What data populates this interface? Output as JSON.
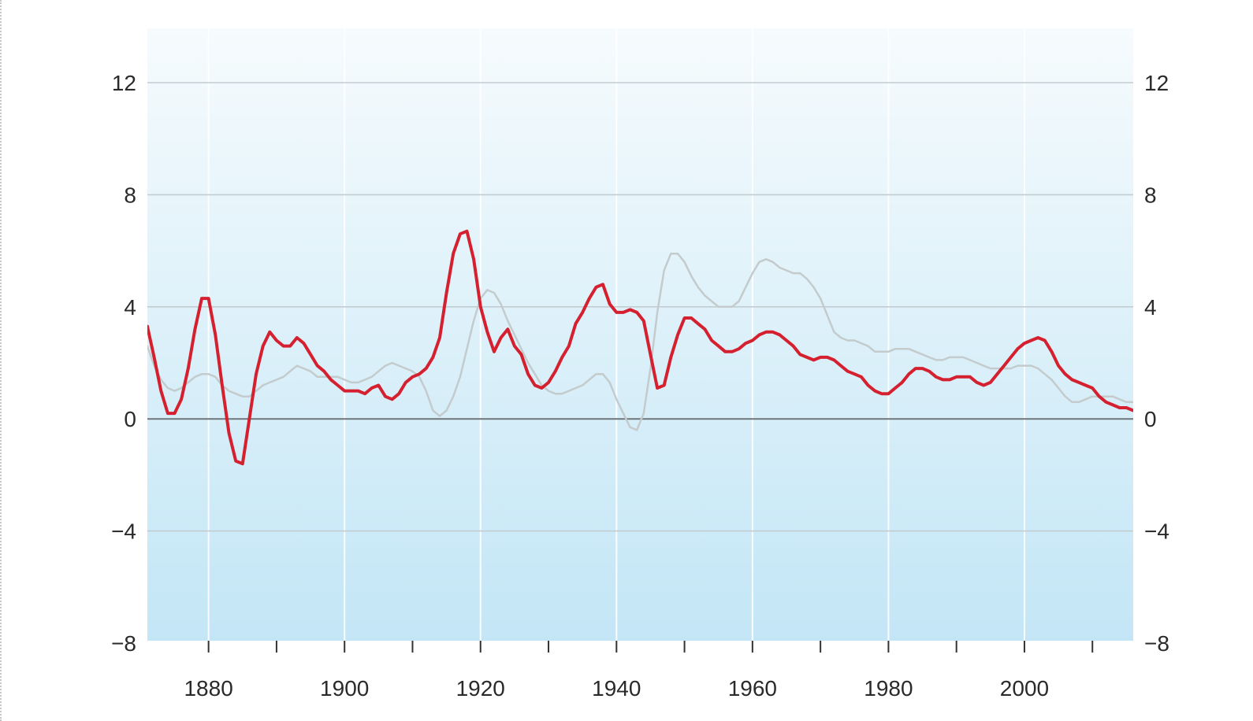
{
  "chart_data": {
    "type": "line",
    "title": "",
    "xlabel": "",
    "ylabel": "",
    "xlim": [
      1871,
      2016
    ],
    "ylim": [
      -8,
      14
    ],
    "grid": true,
    "legend": "none",
    "y_ticks": [
      12,
      8,
      4,
      0,
      -4,
      -8
    ],
    "y_tick_labels": [
      "12",
      "8",
      "4",
      "0",
      "−4",
      "−8"
    ],
    "x_ticks": [
      1880,
      1890,
      1900,
      1910,
      1920,
      1930,
      1940,
      1950,
      1960,
      1970,
      1980,
      1990,
      2000,
      2010
    ],
    "x_tick_labels": [
      "1880",
      "1900",
      "1920",
      "1940",
      "1960",
      "1980",
      "2000"
    ],
    "x_tick_label_years": [
      1880,
      1900,
      1920,
      1940,
      1960,
      1980,
      2000
    ],
    "colors": {
      "highlight": "#d5202f",
      "secondary": "#c4cbcd",
      "grid": "#c2cdd2",
      "zero_line": "#6e767a",
      "bg_top": "#f6fbfd",
      "bg_bottom": "#c3e6f6"
    },
    "series": [
      {
        "color": "#d5202f",
        "x": [
          1871,
          1872,
          1873,
          1874,
          1875,
          1876,
          1877,
          1878,
          1879,
          1880,
          1881,
          1882,
          1883,
          1884,
          1885,
          1886,
          1887,
          1888,
          1889,
          1890,
          1891,
          1892,
          1893,
          1894,
          1895,
          1896,
          1897,
          1898,
          1899,
          1900,
          1901,
          1902,
          1903,
          1904,
          1905,
          1906,
          1907,
          1908,
          1909,
          1910,
          1911,
          1912,
          1913,
          1914,
          1915,
          1916,
          1917,
          1918,
          1919,
          1920,
          1921,
          1922,
          1923,
          1924,
          1925,
          1926,
          1927,
          1928,
          1929,
          1930,
          1931,
          1932,
          1933,
          1934,
          1935,
          1936,
          1937,
          1938,
          1939,
          1940,
          1941,
          1942,
          1943,
          1944,
          1945,
          1946,
          1947,
          1948,
          1949,
          1950,
          1951,
          1952,
          1953,
          1954,
          1955,
          1956,
          1957,
          1958,
          1959,
          1960,
          1961,
          1962,
          1963,
          1964,
          1965,
          1966,
          1967,
          1968,
          1969,
          1970,
          1971,
          1972,
          1973,
          1974,
          1975,
          1976,
          1977,
          1978,
          1979,
          1980,
          1981,
          1982,
          1983,
          1984,
          1985,
          1986,
          1987,
          1988,
          1989,
          1990,
          1991,
          1992,
          1993,
          1994,
          1995,
          1996,
          1997,
          1998,
          1999,
          2000,
          2001,
          2002,
          2003,
          2004,
          2005,
          2006,
          2007,
          2008,
          2009,
          2010,
          2011,
          2012,
          2013,
          2014,
          2015,
          2016
        ],
        "y": [
          3.3,
          2.2,
          1.0,
          0.2,
          0.2,
          0.7,
          1.8,
          3.2,
          4.3,
          4.3,
          3.0,
          1.2,
          -0.5,
          -1.5,
          -1.6,
          0.0,
          1.6,
          2.6,
          3.1,
          2.8,
          2.6,
          2.6,
          2.9,
          2.7,
          2.3,
          1.9,
          1.7,
          1.4,
          1.2,
          1.0,
          1.0,
          1.0,
          0.9,
          1.1,
          1.2,
          0.8,
          0.7,
          0.9,
          1.3,
          1.5,
          1.6,
          1.8,
          2.2,
          2.9,
          4.5,
          5.9,
          6.6,
          6.7,
          5.7,
          4.0,
          3.1,
          2.4,
          2.9,
          3.2,
          2.6,
          2.3,
          1.6,
          1.2,
          1.1,
          1.3,
          1.7,
          2.2,
          2.6,
          3.4,
          3.8,
          4.3,
          4.7,
          4.8,
          4.1,
          3.8,
          3.8,
          3.9,
          3.8,
          3.5,
          2.3,
          1.1,
          1.2,
          2.2,
          3.0,
          3.6,
          3.6,
          3.4,
          3.2,
          2.8,
          2.6,
          2.4,
          2.4,
          2.5,
          2.7,
          2.8,
          3.0,
          3.1,
          3.1,
          3.0,
          2.8,
          2.6,
          2.3,
          2.2,
          2.1,
          2.2,
          2.2,
          2.1,
          1.9,
          1.7,
          1.6,
          1.5,
          1.2,
          1.0,
          0.9,
          0.9,
          1.1,
          1.3,
          1.6,
          1.8,
          1.8,
          1.7,
          1.5,
          1.4,
          1.4,
          1.5,
          1.5,
          1.5,
          1.3,
          1.2,
          1.3,
          1.6,
          1.9,
          2.2,
          2.5,
          2.7,
          2.8,
          2.9,
          2.8,
          2.4,
          1.9,
          1.6,
          1.4,
          1.3,
          1.2,
          1.1,
          0.8,
          0.6,
          0.5,
          0.4,
          0.4,
          0.3
        ]
      },
      {
        "color": "#c4cbcd",
        "x": [
          1871,
          1872,
          1873,
          1874,
          1875,
          1876,
          1877,
          1878,
          1879,
          1880,
          1881,
          1882,
          1883,
          1884,
          1885,
          1886,
          1887,
          1888,
          1889,
          1890,
          1891,
          1892,
          1893,
          1894,
          1895,
          1896,
          1897,
          1898,
          1899,
          1900,
          1901,
          1902,
          1903,
          1904,
          1905,
          1906,
          1907,
          1908,
          1909,
          1910,
          1911,
          1912,
          1913,
          1914,
          1915,
          1916,
          1917,
          1918,
          1919,
          1920,
          1921,
          1922,
          1923,
          1924,
          1925,
          1926,
          1927,
          1928,
          1929,
          1930,
          1931,
          1932,
          1933,
          1934,
          1935,
          1936,
          1937,
          1938,
          1939,
          1940,
          1941,
          1942,
          1943,
          1944,
          1945,
          1946,
          1947,
          1948,
          1949,
          1950,
          1951,
          1952,
          1953,
          1954,
          1955,
          1956,
          1957,
          1958,
          1959,
          1960,
          1961,
          1962,
          1963,
          1964,
          1965,
          1966,
          1967,
          1968,
          1969,
          1970,
          1971,
          1972,
          1973,
          1974,
          1975,
          1976,
          1977,
          1978,
          1979,
          1980,
          1981,
          1982,
          1983,
          1984,
          1985,
          1986,
          1987,
          1988,
          1989,
          1990,
          1991,
          1992,
          1993,
          1994,
          1995,
          1996,
          1997,
          1998,
          1999,
          2000,
          2001,
          2002,
          2003,
          2004,
          2005,
          2006,
          2007,
          2008,
          2009,
          2010,
          2011,
          2012,
          2013,
          2014,
          2015,
          2016
        ],
        "y": [
          2.6,
          1.9,
          1.4,
          1.1,
          1.0,
          1.1,
          1.3,
          1.5,
          1.6,
          1.6,
          1.5,
          1.2,
          1.0,
          0.9,
          0.8,
          0.8,
          1.0,
          1.2,
          1.3,
          1.4,
          1.5,
          1.7,
          1.9,
          1.8,
          1.7,
          1.5,
          1.5,
          1.5,
          1.5,
          1.4,
          1.3,
          1.3,
          1.4,
          1.5,
          1.7,
          1.9,
          2.0,
          1.9,
          1.8,
          1.7,
          1.5,
          1.0,
          0.3,
          0.1,
          0.3,
          0.8,
          1.5,
          2.5,
          3.5,
          4.3,
          4.6,
          4.5,
          4.1,
          3.5,
          3.0,
          2.5,
          2.0,
          1.6,
          1.2,
          1.0,
          0.9,
          0.9,
          1.0,
          1.1,
          1.2,
          1.4,
          1.6,
          1.6,
          1.3,
          0.7,
          0.2,
          -0.3,
          -0.4,
          0.2,
          1.8,
          3.8,
          5.3,
          5.9,
          5.9,
          5.6,
          5.1,
          4.7,
          4.4,
          4.2,
          4.0,
          4.0,
          4.0,
          4.2,
          4.7,
          5.2,
          5.6,
          5.7,
          5.6,
          5.4,
          5.3,
          5.2,
          5.2,
          5.0,
          4.7,
          4.3,
          3.7,
          3.1,
          2.9,
          2.8,
          2.8,
          2.7,
          2.6,
          2.4,
          2.4,
          2.4,
          2.5,
          2.5,
          2.5,
          2.4,
          2.3,
          2.2,
          2.1,
          2.1,
          2.2,
          2.2,
          2.2,
          2.1,
          2.0,
          1.9,
          1.8,
          1.8,
          1.8,
          1.8,
          1.9,
          1.9,
          1.9,
          1.8,
          1.6,
          1.4,
          1.1,
          0.8,
          0.6,
          0.6,
          0.7,
          0.8,
          0.8,
          0.8,
          0.8,
          0.7,
          0.6,
          0.6
        ]
      }
    ]
  }
}
